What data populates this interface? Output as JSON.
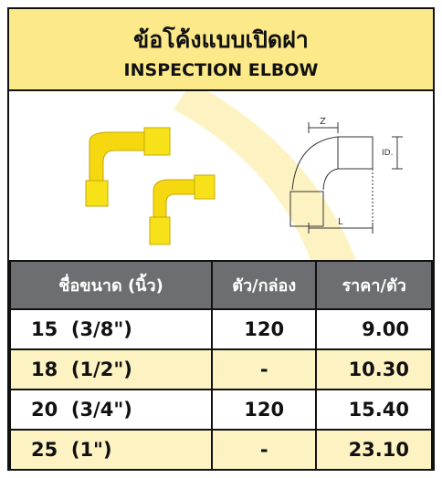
{
  "header": {
    "title_th": "ข้อโค้งแบบเปิดฝา",
    "title_en": "INSPECTION ELBOW"
  },
  "diagram": {
    "z_label": "Z",
    "id_label": "ID.",
    "l_label": "L"
  },
  "table": {
    "columns": [
      "ชื่อขนาด (นิ้ว)",
      "ตัว/กล่อง",
      "ราคา/ตัว"
    ],
    "rows": [
      [
        "15  (3/8\")",
        "120",
        "9.00"
      ],
      [
        "18  (1/2\")",
        "-",
        "10.30"
      ],
      [
        "20  (3/4\")",
        "120",
        "15.40"
      ],
      [
        "25  (1\")",
        "-",
        "23.10"
      ]
    ]
  }
}
